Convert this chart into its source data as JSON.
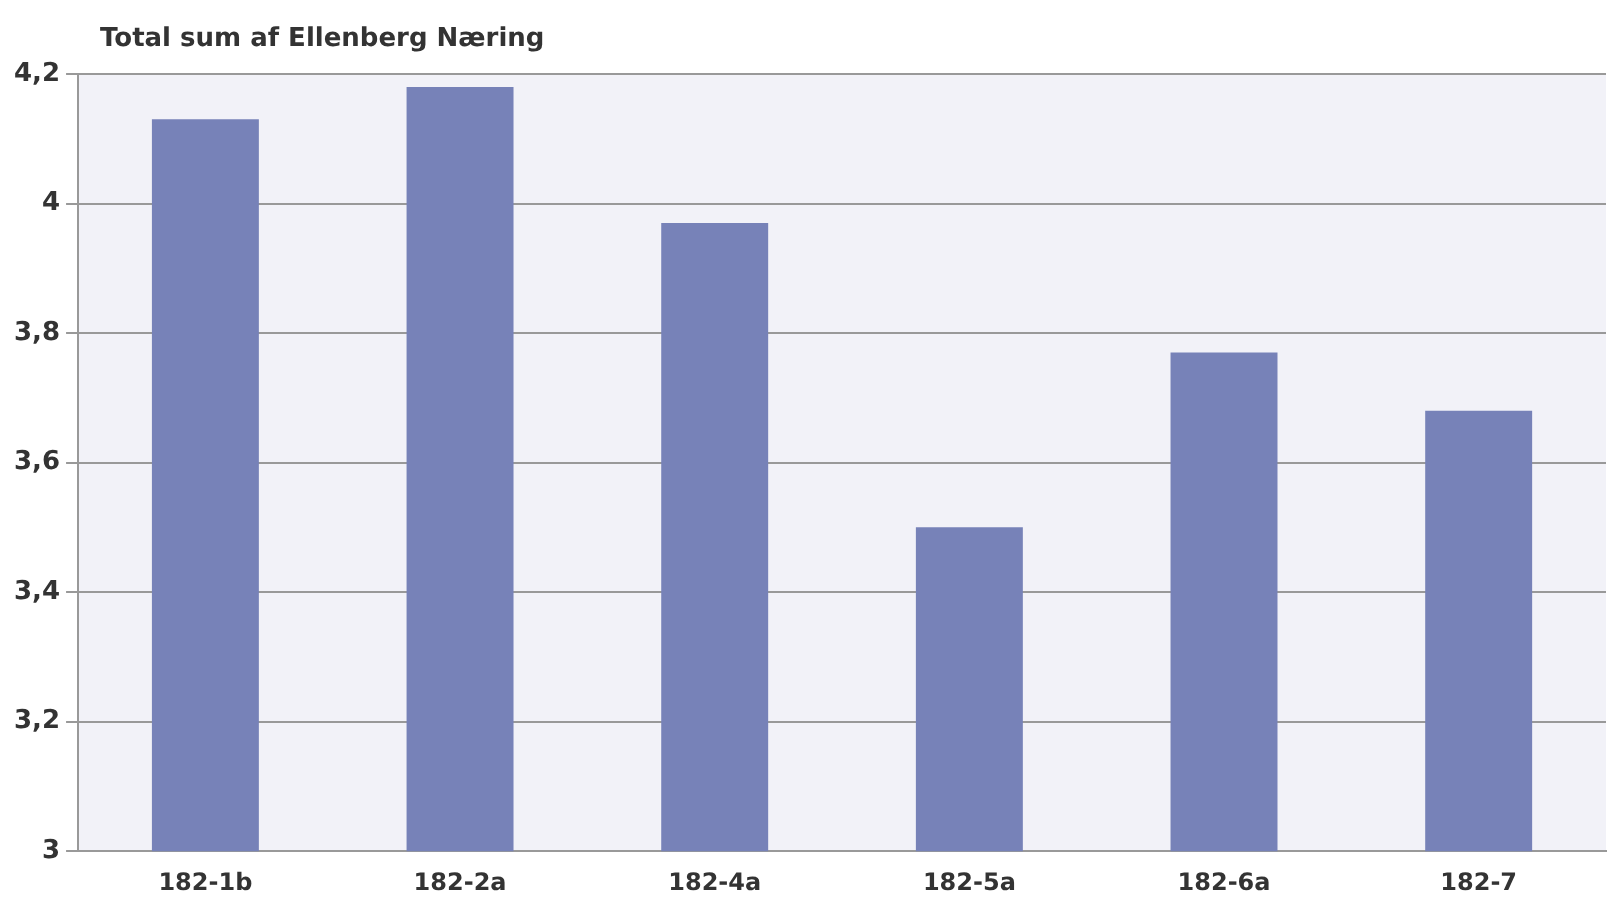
{
  "chart_data": {
    "type": "bar",
    "title": "Total sum af Ellenberg Næring",
    "categories": [
      "182-1b",
      "182-2a",
      "182-4a",
      "182-5a",
      "182-6a",
      "182-7"
    ],
    "values": [
      4.13,
      4.18,
      3.97,
      3.5,
      3.77,
      3.68
    ],
    "color": "#7782b8",
    "ylim": [
      3,
      4.2
    ],
    "yticks": [
      3,
      {
        "value": 3.2,
        "label": "3,2"
      },
      {
        "value": 3.4,
        "label": "3,4"
      },
      {
        "value": 3.6,
        "label": "3,6"
      },
      {
        "value": 3.8,
        "label": "3,8"
      },
      4,
      {
        "value": 4.2,
        "label": "4,2"
      }
    ],
    "grid": "y",
    "legend": false
  }
}
